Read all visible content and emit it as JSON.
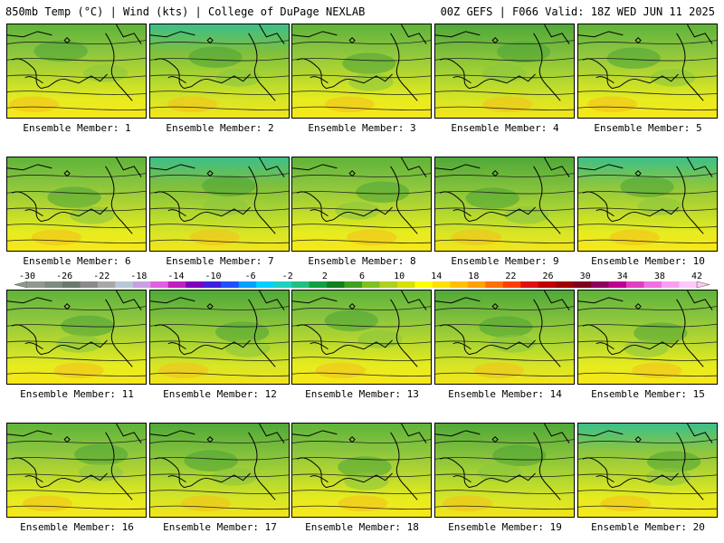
{
  "header": {
    "left": "850mb Temp (°C) | Wind (kts) | College of DuPage NEXLAB",
    "right": "00Z GEFS | F066 Valid: 18Z WED JUN 11 2025"
  },
  "panels": [
    {
      "label": "Ensemble Member: 1"
    },
    {
      "label": "Ensemble Member: 2"
    },
    {
      "label": "Ensemble Member: 3"
    },
    {
      "label": "Ensemble Member: 4"
    },
    {
      "label": "Ensemble Member: 5"
    },
    {
      "label": "Ensemble Member: 6"
    },
    {
      "label": "Ensemble Member: 7"
    },
    {
      "label": "Ensemble Member: 8"
    },
    {
      "label": "Ensemble Member: 9"
    },
    {
      "label": "Ensemble Member: 10"
    },
    {
      "label": "Ensemble Member: 11"
    },
    {
      "label": "Ensemble Member: 12"
    },
    {
      "label": "Ensemble Member: 13"
    },
    {
      "label": "Ensemble Member: 14"
    },
    {
      "label": "Ensemble Member: 15"
    },
    {
      "label": "Ensemble Member: 16"
    },
    {
      "label": "Ensemble Member: 17"
    },
    {
      "label": "Ensemble Member: 18"
    },
    {
      "label": "Ensemble Member: 19"
    },
    {
      "label": "Ensemble Member: 20"
    }
  ],
  "colorbar": {
    "ticks": [
      "-30",
      "-26",
      "-22",
      "-18",
      "-14",
      "-10",
      "-6",
      "-2",
      "2",
      "6",
      "10",
      "14",
      "18",
      "22",
      "26",
      "30",
      "34",
      "38",
      "42"
    ],
    "colors": [
      "#909890",
      "#7f8a80",
      "#6d786d",
      "#8a8a8a",
      "#a8a8a8",
      "#b8c8d8",
      "#c8a0e0",
      "#e060e0",
      "#c020c0",
      "#8000c0",
      "#4020e0",
      "#2050ff",
      "#00a0ff",
      "#00d0ff",
      "#20d0c0",
      "#20c080",
      "#10a040",
      "#108020",
      "#40a020",
      "#80c020",
      "#b0d020",
      "#d8e000",
      "#ffff00",
      "#ffe000",
      "#ffc000",
      "#ffa000",
      "#ff7000",
      "#ff4000",
      "#e01010",
      "#c00000",
      "#a00000",
      "#800020",
      "#900060",
      "#c00090",
      "#e040c0",
      "#f070e0",
      "#f8a0f0",
      "#ffc8f8"
    ]
  }
}
